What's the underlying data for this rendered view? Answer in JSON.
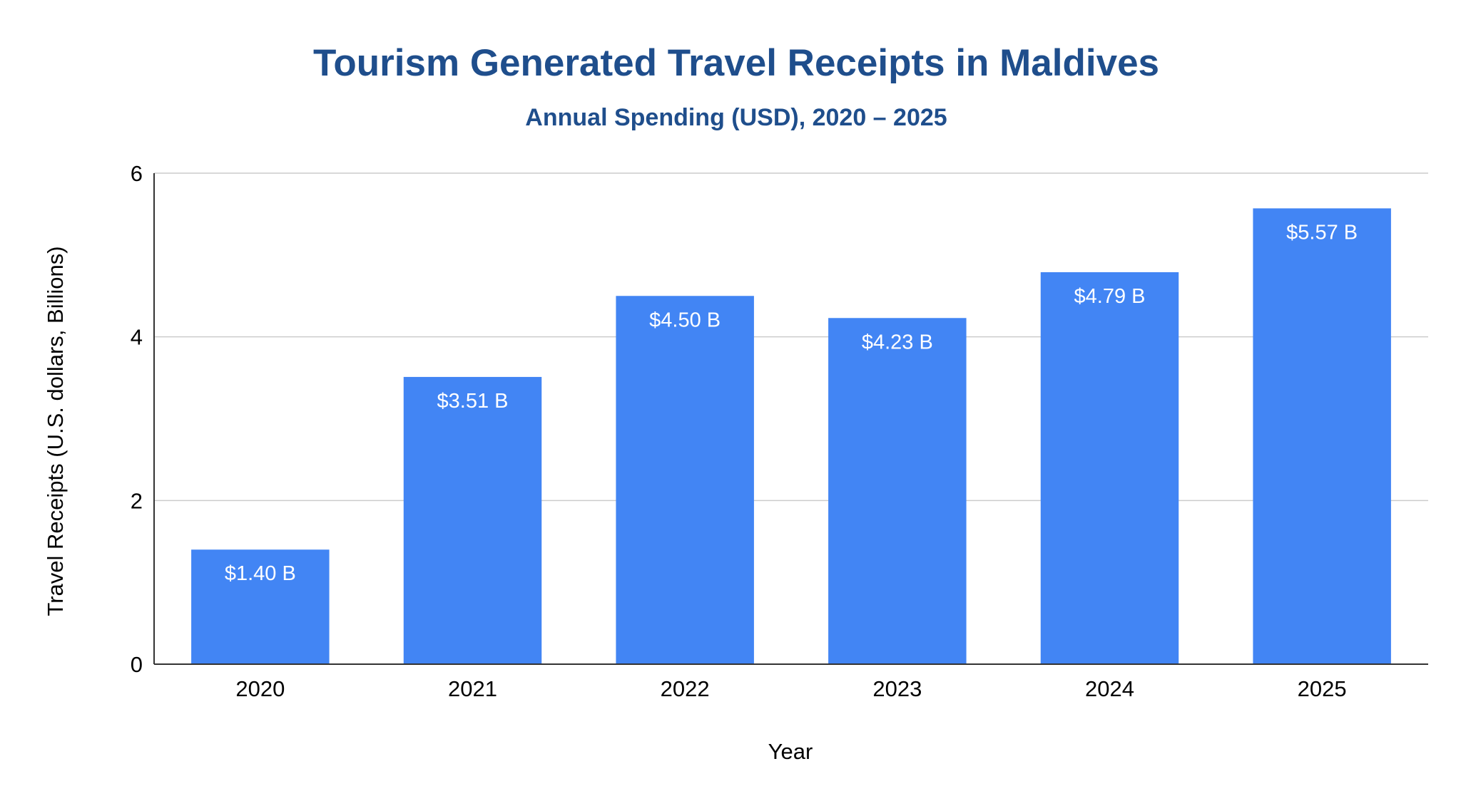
{
  "chart_data": {
    "type": "bar",
    "title": "Tourism Generated Travel Receipts in Maldives",
    "subtitle": "Annual Spending (USD), 2020 – 2025",
    "xlabel": "Year",
    "ylabel": "Travel Receipts (U.S. dollars, Billions)",
    "categories": [
      "2020",
      "2021",
      "2022",
      "2023",
      "2024",
      "2025"
    ],
    "values": [
      1.4,
      3.51,
      4.5,
      4.23,
      4.79,
      5.57
    ],
    "data_labels": [
      "$1.40 B",
      "$3.51 B",
      "$4.50 B",
      "$4.23 B",
      "$4.79 B",
      "$5.57 B"
    ],
    "ylim": [
      0,
      6
    ],
    "yticks": [
      0,
      2,
      4,
      6
    ],
    "ytick_labels": [
      "0",
      "2",
      "4",
      "6"
    ],
    "grid": true,
    "legend": "none",
    "colors": {
      "bar": "#4285f4",
      "title": "#1f4e8c",
      "data_label": "#ffffff",
      "grid": "#cccccc",
      "axis": "#333333",
      "text": "#000000"
    }
  }
}
